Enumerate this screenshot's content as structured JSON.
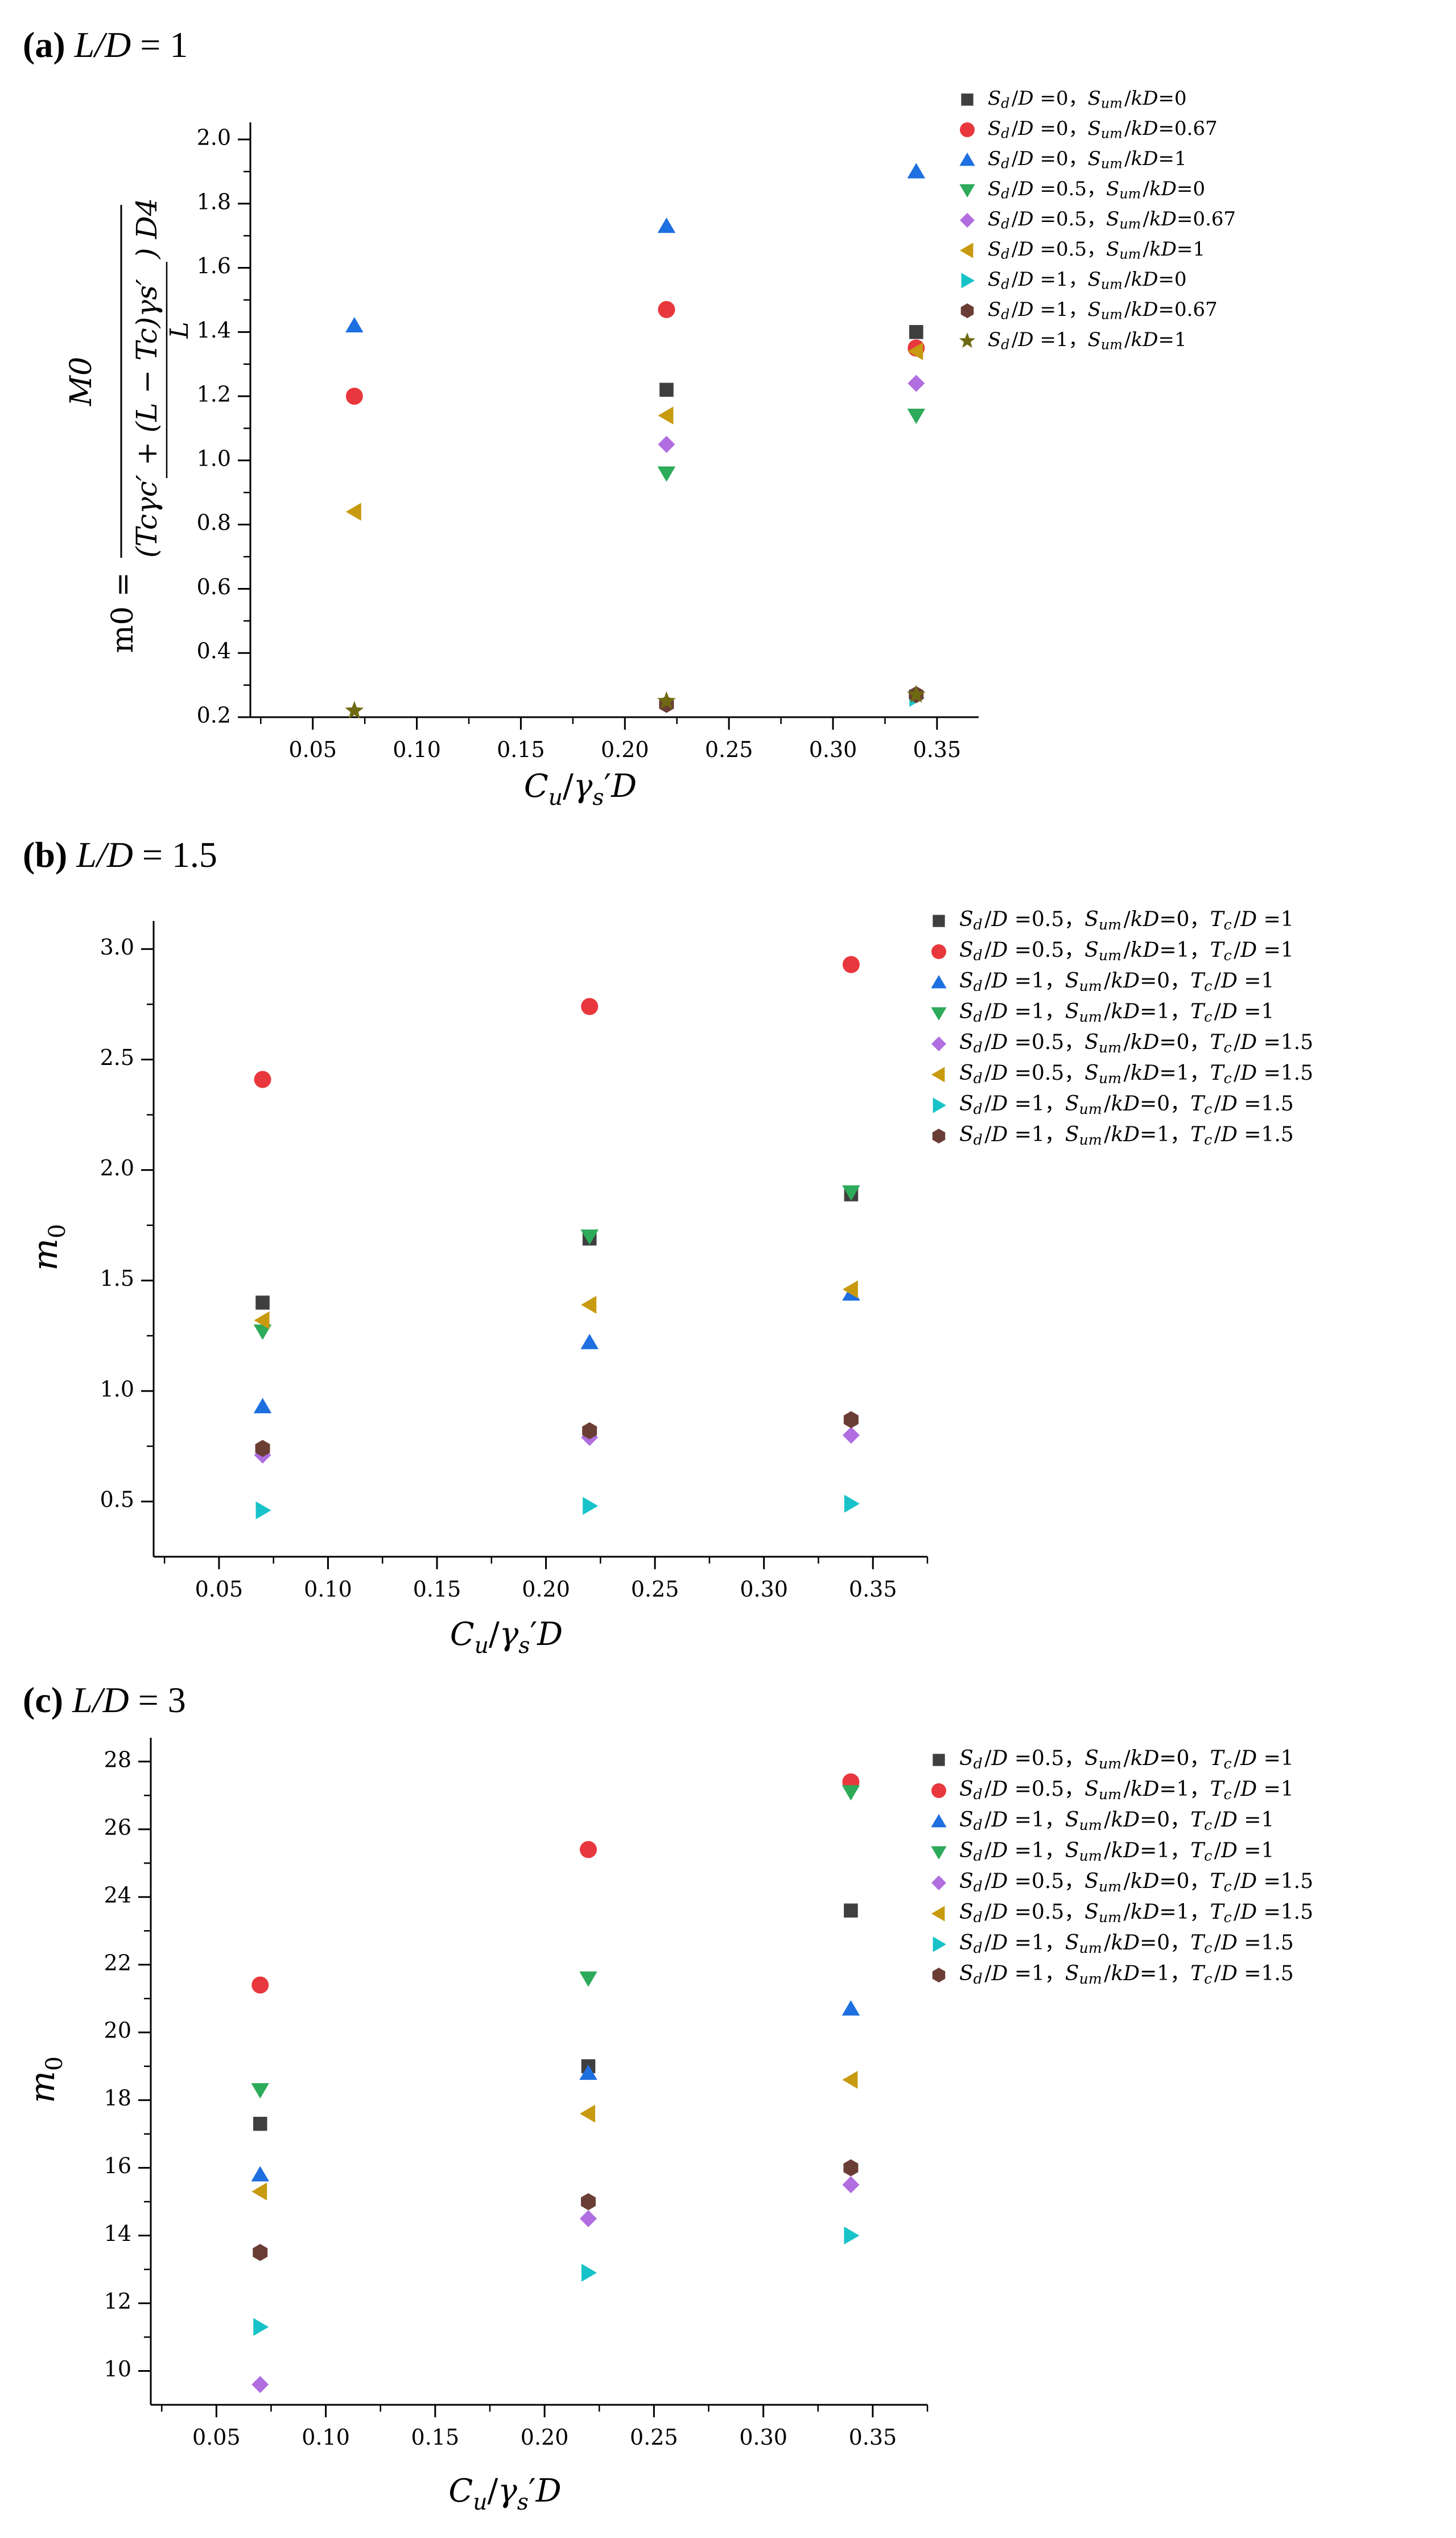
{
  "colors": {
    "square": "#3f3f3f",
    "circle": "#e8383d",
    "up": "#1e6fe0",
    "down": "#2daa5a",
    "diamond": "#b06ee0",
    "left": "#c89a10",
    "right": "#17c3c8",
    "hex": "#6b3e35",
    "star": "#6f6a12"
  },
  "chart_data": [
    {
      "type": "scatter",
      "panel": "a",
      "title_prefix": "(a) ",
      "title_var": "L/D",
      "title_value": "= 1",
      "xlabel": "Cu/γs′D",
      "ylabel_simple": "",
      "ylabel_formula": {
        "lhs": "m0 =",
        "numerator": "M0",
        "denominator_main": "(Tcγc′ + (L − Tc)γs′",
        "denominator_sub": "L",
        "denominator_tail": ") D4"
      },
      "xlim": [
        0.02,
        0.37
      ],
      "ylim": [
        0.2,
        2.0
      ],
      "x_ticks": [
        "0.05",
        "0.10",
        "0.15",
        "0.20",
        "0.25",
        "0.30",
        "0.35"
      ],
      "x_tick_values": [
        0.05,
        0.1,
        0.15,
        0.2,
        0.25,
        0.3,
        0.35
      ],
      "y_ticks": [
        "0.2",
        "0.4",
        "0.6",
        "0.8",
        "1.0",
        "1.2",
        "1.4",
        "1.6",
        "1.8",
        "2.0"
      ],
      "y_tick_values": [
        0.2,
        0.4,
        0.6,
        0.8,
        1.0,
        1.2,
        1.4,
        1.6,
        1.8,
        2.0
      ],
      "series": [
        {
          "name": "Sd/D =0，Sum/kD=0",
          "marker": "square",
          "x": [
            0.22,
            0.34
          ],
          "y": [
            1.22,
            1.4
          ]
        },
        {
          "name": "Sd/D =0，Sum/kD=0.67",
          "marker": "circle",
          "x": [
            0.07,
            0.22,
            0.34
          ],
          "y": [
            1.2,
            1.47,
            1.35
          ]
        },
        {
          "name": "Sd/D =0，Sum/kD=1",
          "marker": "up",
          "x": [
            0.07,
            0.22,
            0.34
          ],
          "y": [
            1.42,
            1.73,
            1.9
          ]
        },
        {
          "name": "Sd/D =0.5，Sum/kD=0",
          "marker": "down",
          "x": [
            0.22,
            0.34
          ],
          "y": [
            0.96,
            1.14
          ]
        },
        {
          "name": "Sd/D =0.5，Sum/kD=0.67",
          "marker": "diamond",
          "x": [
            0.22,
            0.34
          ],
          "y": [
            1.05,
            1.24
          ]
        },
        {
          "name": "Sd/D =0.5，Sum/kD=1",
          "marker": "left",
          "x": [
            0.07,
            0.22,
            0.34
          ],
          "y": [
            0.84,
            1.14,
            1.34
          ]
        },
        {
          "name": "Sd/D =1，Sum/kD=0",
          "marker": "right",
          "x": [
            0.34
          ],
          "y": [
            0.26
          ]
        },
        {
          "name": "Sd/D =1，Sum/kD=0.67",
          "marker": "hex",
          "x": [
            0.22,
            0.34
          ],
          "y": [
            0.24,
            0.27
          ]
        },
        {
          "name": "Sd/D =1，Sum/kD=1",
          "marker": "star",
          "x": [
            0.07,
            0.22,
            0.34
          ],
          "y": [
            0.22,
            0.25,
            0.27
          ]
        }
      ]
    },
    {
      "type": "scatter",
      "panel": "b",
      "title_prefix": "(b) ",
      "title_var": "L/D",
      "title_value": "= 1.5",
      "xlabel": "Cu/γs′D",
      "ylabel_simple": "m0",
      "xlim": [
        0.02,
        0.375
      ],
      "ylim": [
        0.25,
        3.05
      ],
      "x_ticks": [
        "0.05",
        "0.10",
        "0.15",
        "0.20",
        "0.25",
        "0.30",
        "0.35"
      ],
      "x_tick_values": [
        0.05,
        0.1,
        0.15,
        0.2,
        0.25,
        0.3,
        0.35
      ],
      "y_ticks": [
        "0.5",
        "1.0",
        "1.5",
        "2.0",
        "2.5",
        "3.0"
      ],
      "y_tick_values": [
        0.5,
        1.0,
        1.5,
        2.0,
        2.5,
        3.0
      ],
      "series": [
        {
          "name": "Sd/D =0.5，Sum/kD=0，Tc/D =1",
          "marker": "square",
          "x": [
            0.07,
            0.22,
            0.34
          ],
          "y": [
            1.4,
            1.69,
            1.89
          ]
        },
        {
          "name": "Sd/D =0.5，Sum/kD=1，Tc/D =1",
          "marker": "circle",
          "x": [
            0.07,
            0.22,
            0.34
          ],
          "y": [
            2.41,
            2.74,
            2.93
          ]
        },
        {
          "name": "Sd/D =1，Sum/kD=0，Tc/D =1",
          "marker": "up",
          "x": [
            0.07,
            0.22,
            0.34
          ],
          "y": [
            0.93,
            1.22,
            1.44
          ]
        },
        {
          "name": "Sd/D =1，Sum/kD=1，Tc/D =1",
          "marker": "down",
          "x": [
            0.07,
            0.22,
            0.34
          ],
          "y": [
            1.27,
            1.7,
            1.9
          ]
        },
        {
          "name": "Sd/D =0.5，Sum/kD=0，Tc/D =1.5",
          "marker": "diamond",
          "x": [
            0.07,
            0.22,
            0.34
          ],
          "y": [
            0.71,
            0.79,
            0.8
          ]
        },
        {
          "name": "Sd/D =0.5，Sum/kD=1，Tc/D =1.5",
          "marker": "left",
          "x": [
            0.07,
            0.22,
            0.34
          ],
          "y": [
            1.32,
            1.39,
            1.46
          ]
        },
        {
          "name": "Sd/D =1，Sum/kD=0，Tc/D =1.5",
          "marker": "right",
          "x": [
            0.07,
            0.22,
            0.34
          ],
          "y": [
            0.46,
            0.48,
            0.49
          ]
        },
        {
          "name": "Sd/D =1，Sum/kD=1，Tc/D =1.5",
          "marker": "hex",
          "x": [
            0.07,
            0.22,
            0.34
          ],
          "y": [
            0.74,
            0.82,
            0.87
          ]
        }
      ]
    },
    {
      "type": "scatter",
      "panel": "c",
      "title_prefix": "(c) ",
      "title_var": "L/D",
      "title_value": "= 3",
      "xlabel": "Cu/γs′D",
      "ylabel_simple": "m0",
      "xlim": [
        0.02,
        0.375
      ],
      "ylim": [
        9.0,
        28.2
      ],
      "x_ticks": [
        "0.05",
        "0.10",
        "0.15",
        "0.20",
        "0.25",
        "0.30",
        "0.35"
      ],
      "x_tick_values": [
        0.05,
        0.1,
        0.15,
        0.2,
        0.25,
        0.3,
        0.35
      ],
      "y_ticks": [
        "10",
        "12",
        "14",
        "16",
        "18",
        "20",
        "22",
        "24",
        "26",
        "28"
      ],
      "y_tick_values": [
        10,
        12,
        14,
        16,
        18,
        20,
        22,
        24,
        26,
        28
      ],
      "series": [
        {
          "name": "Sd/D =0.5，Sum/kD=0，Tc/D =1",
          "marker": "square",
          "x": [
            0.07,
            0.22,
            0.34
          ],
          "y": [
            17.3,
            19.0,
            23.6
          ]
        },
        {
          "name": "Sd/D =0.5，Sum/kD=1，Tc/D =1",
          "marker": "circle",
          "x": [
            0.07,
            0.22,
            0.34
          ],
          "y": [
            21.4,
            25.4,
            27.4
          ]
        },
        {
          "name": "Sd/D =1，Sum/kD=0，Tc/D =1",
          "marker": "up",
          "x": [
            0.07,
            0.22,
            0.34
          ],
          "y": [
            15.8,
            18.8,
            20.7
          ]
        },
        {
          "name": "Sd/D =1，Sum/kD=1，Tc/D =1",
          "marker": "down",
          "x": [
            0.07,
            0.22,
            0.34
          ],
          "y": [
            18.3,
            21.6,
            27.1
          ]
        },
        {
          "name": "Sd/D =0.5，Sum/kD=0，Tc/D =1.5",
          "marker": "diamond",
          "x": [
            0.07,
            0.22,
            0.34
          ],
          "y": [
            9.6,
            14.5,
            15.5
          ]
        },
        {
          "name": "Sd/D =0.5，Sum/kD=1，Tc/D =1.5",
          "marker": "left",
          "x": [
            0.07,
            0.22,
            0.34
          ],
          "y": [
            15.3,
            17.6,
            18.6
          ]
        },
        {
          "name": "Sd/D =1，Sum/kD=0，Tc/D =1.5",
          "marker": "right",
          "x": [
            0.07,
            0.22,
            0.34
          ],
          "y": [
            11.3,
            12.9,
            14.0
          ]
        },
        {
          "name": "Sd/D =1，Sum/kD=1，Tc/D =1.5",
          "marker": "hex",
          "x": [
            0.07,
            0.22,
            0.34
          ],
          "y": [
            13.5,
            15.0,
            16.0
          ]
        }
      ]
    }
  ]
}
